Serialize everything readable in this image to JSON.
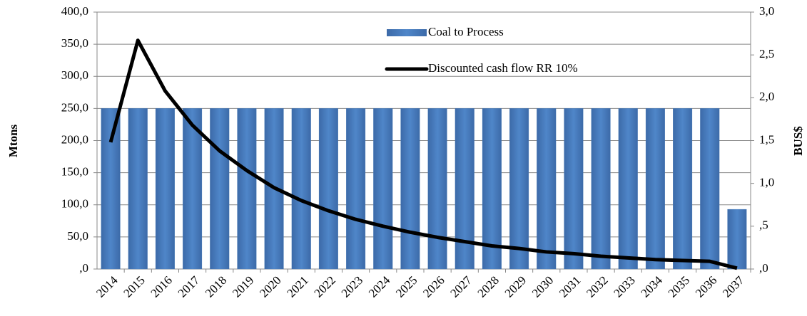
{
  "chart_data": {
    "type": "bar-line",
    "categories": [
      "2014",
      "2015",
      "2016",
      "2017",
      "2018",
      "2019",
      "2020",
      "2021",
      "2022",
      "2023",
      "2024",
      "2025",
      "2026",
      "2027",
      "2028",
      "2029",
      "2030",
      "2031",
      "2032",
      "2033",
      "2034",
      "2035",
      "2036",
      "2037"
    ],
    "y_label": "Mtons",
    "y2_label": "BUS$",
    "ylim": [
      0,
      400
    ],
    "yticks": [
      {
        "value": 0,
        "label": ",0"
      },
      {
        "value": 50,
        "label": "50,0"
      },
      {
        "value": 100,
        "label": "100,0"
      },
      {
        "value": 150,
        "label": "150,0"
      },
      {
        "value": 200,
        "label": "200,0"
      },
      {
        "value": 250,
        "label": "250,0"
      },
      {
        "value": 300,
        "label": "300,0"
      },
      {
        "value": 350,
        "label": "350,0"
      },
      {
        "value": 400,
        "label": "400,0"
      }
    ],
    "y2lim": [
      0,
      3
    ],
    "y2ticks": [
      {
        "value": 0,
        "label": ",0"
      },
      {
        "value": 0.5,
        "label": ",5"
      },
      {
        "value": 1,
        "label": "1,0"
      },
      {
        "value": 1.5,
        "label": "1,5"
      },
      {
        "value": 2,
        "label": "2,0"
      },
      {
        "value": 2.5,
        "label": "2,5"
      },
      {
        "value": 3,
        "label": "3,0"
      }
    ],
    "grid": true,
    "series": [
      {
        "name": "Coal to Process",
        "kind": "bar",
        "color": "#4a7ebb",
        "values": [
          250,
          250,
          250,
          250,
          250,
          250,
          250,
          250,
          250,
          250,
          250,
          250,
          250,
          250,
          250,
          250,
          250,
          250,
          250,
          250,
          250,
          250,
          250,
          93
        ]
      },
      {
        "name": "Discounted cash flow RR 10%",
        "kind": "line",
        "axis": "y2",
        "color": "#000000",
        "values": [
          1.48,
          2.67,
          2.08,
          1.68,
          1.38,
          1.15,
          0.95,
          0.8,
          0.68,
          0.58,
          0.5,
          0.43,
          0.37,
          0.32,
          0.27,
          0.24,
          0.2,
          0.18,
          0.15,
          0.13,
          0.11,
          0.1,
          0.09,
          0.01
        ]
      }
    ]
  }
}
